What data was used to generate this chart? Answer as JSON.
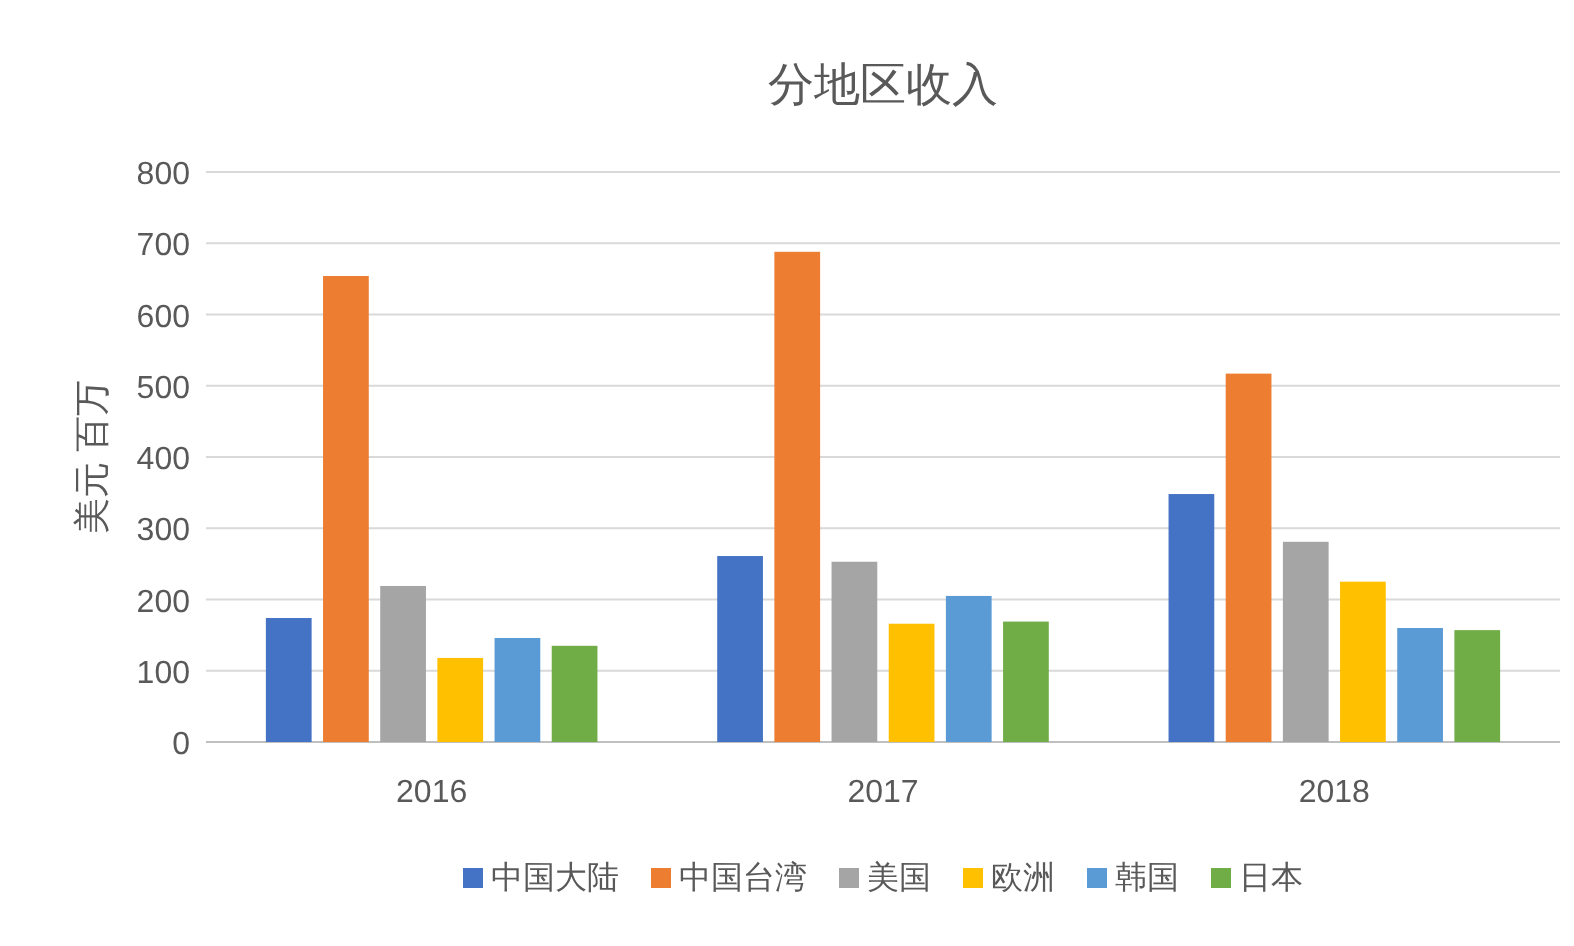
{
  "chart_data": {
    "type": "bar",
    "title": "分地区收入",
    "ylabel": "美元 百万",
    "categories": [
      "2016",
      "2017",
      "2018"
    ],
    "series": [
      {
        "name": "中国大陆",
        "color": "#4472c4",
        "values": [
          174,
          261,
          348
        ]
      },
      {
        "name": "中国台湾",
        "color": "#ed7d31",
        "values": [
          654,
          688,
          517
        ]
      },
      {
        "name": "美国",
        "color": "#a5a5a5",
        "values": [
          219,
          253,
          281
        ]
      },
      {
        "name": "欧洲",
        "color": "#ffc000",
        "values": [
          118,
          166,
          225
        ]
      },
      {
        "name": "韩国",
        "color": "#5b9bd5",
        "values": [
          146,
          205,
          160
        ]
      },
      {
        "name": "日本",
        "color": "#70ad47",
        "values": [
          135,
          169,
          157
        ]
      }
    ],
    "ylim": [
      0,
      800
    ],
    "yticks": [
      0,
      100,
      200,
      300,
      400,
      500,
      600,
      700,
      800
    ],
    "grid": "y",
    "legend": "bottom"
  }
}
